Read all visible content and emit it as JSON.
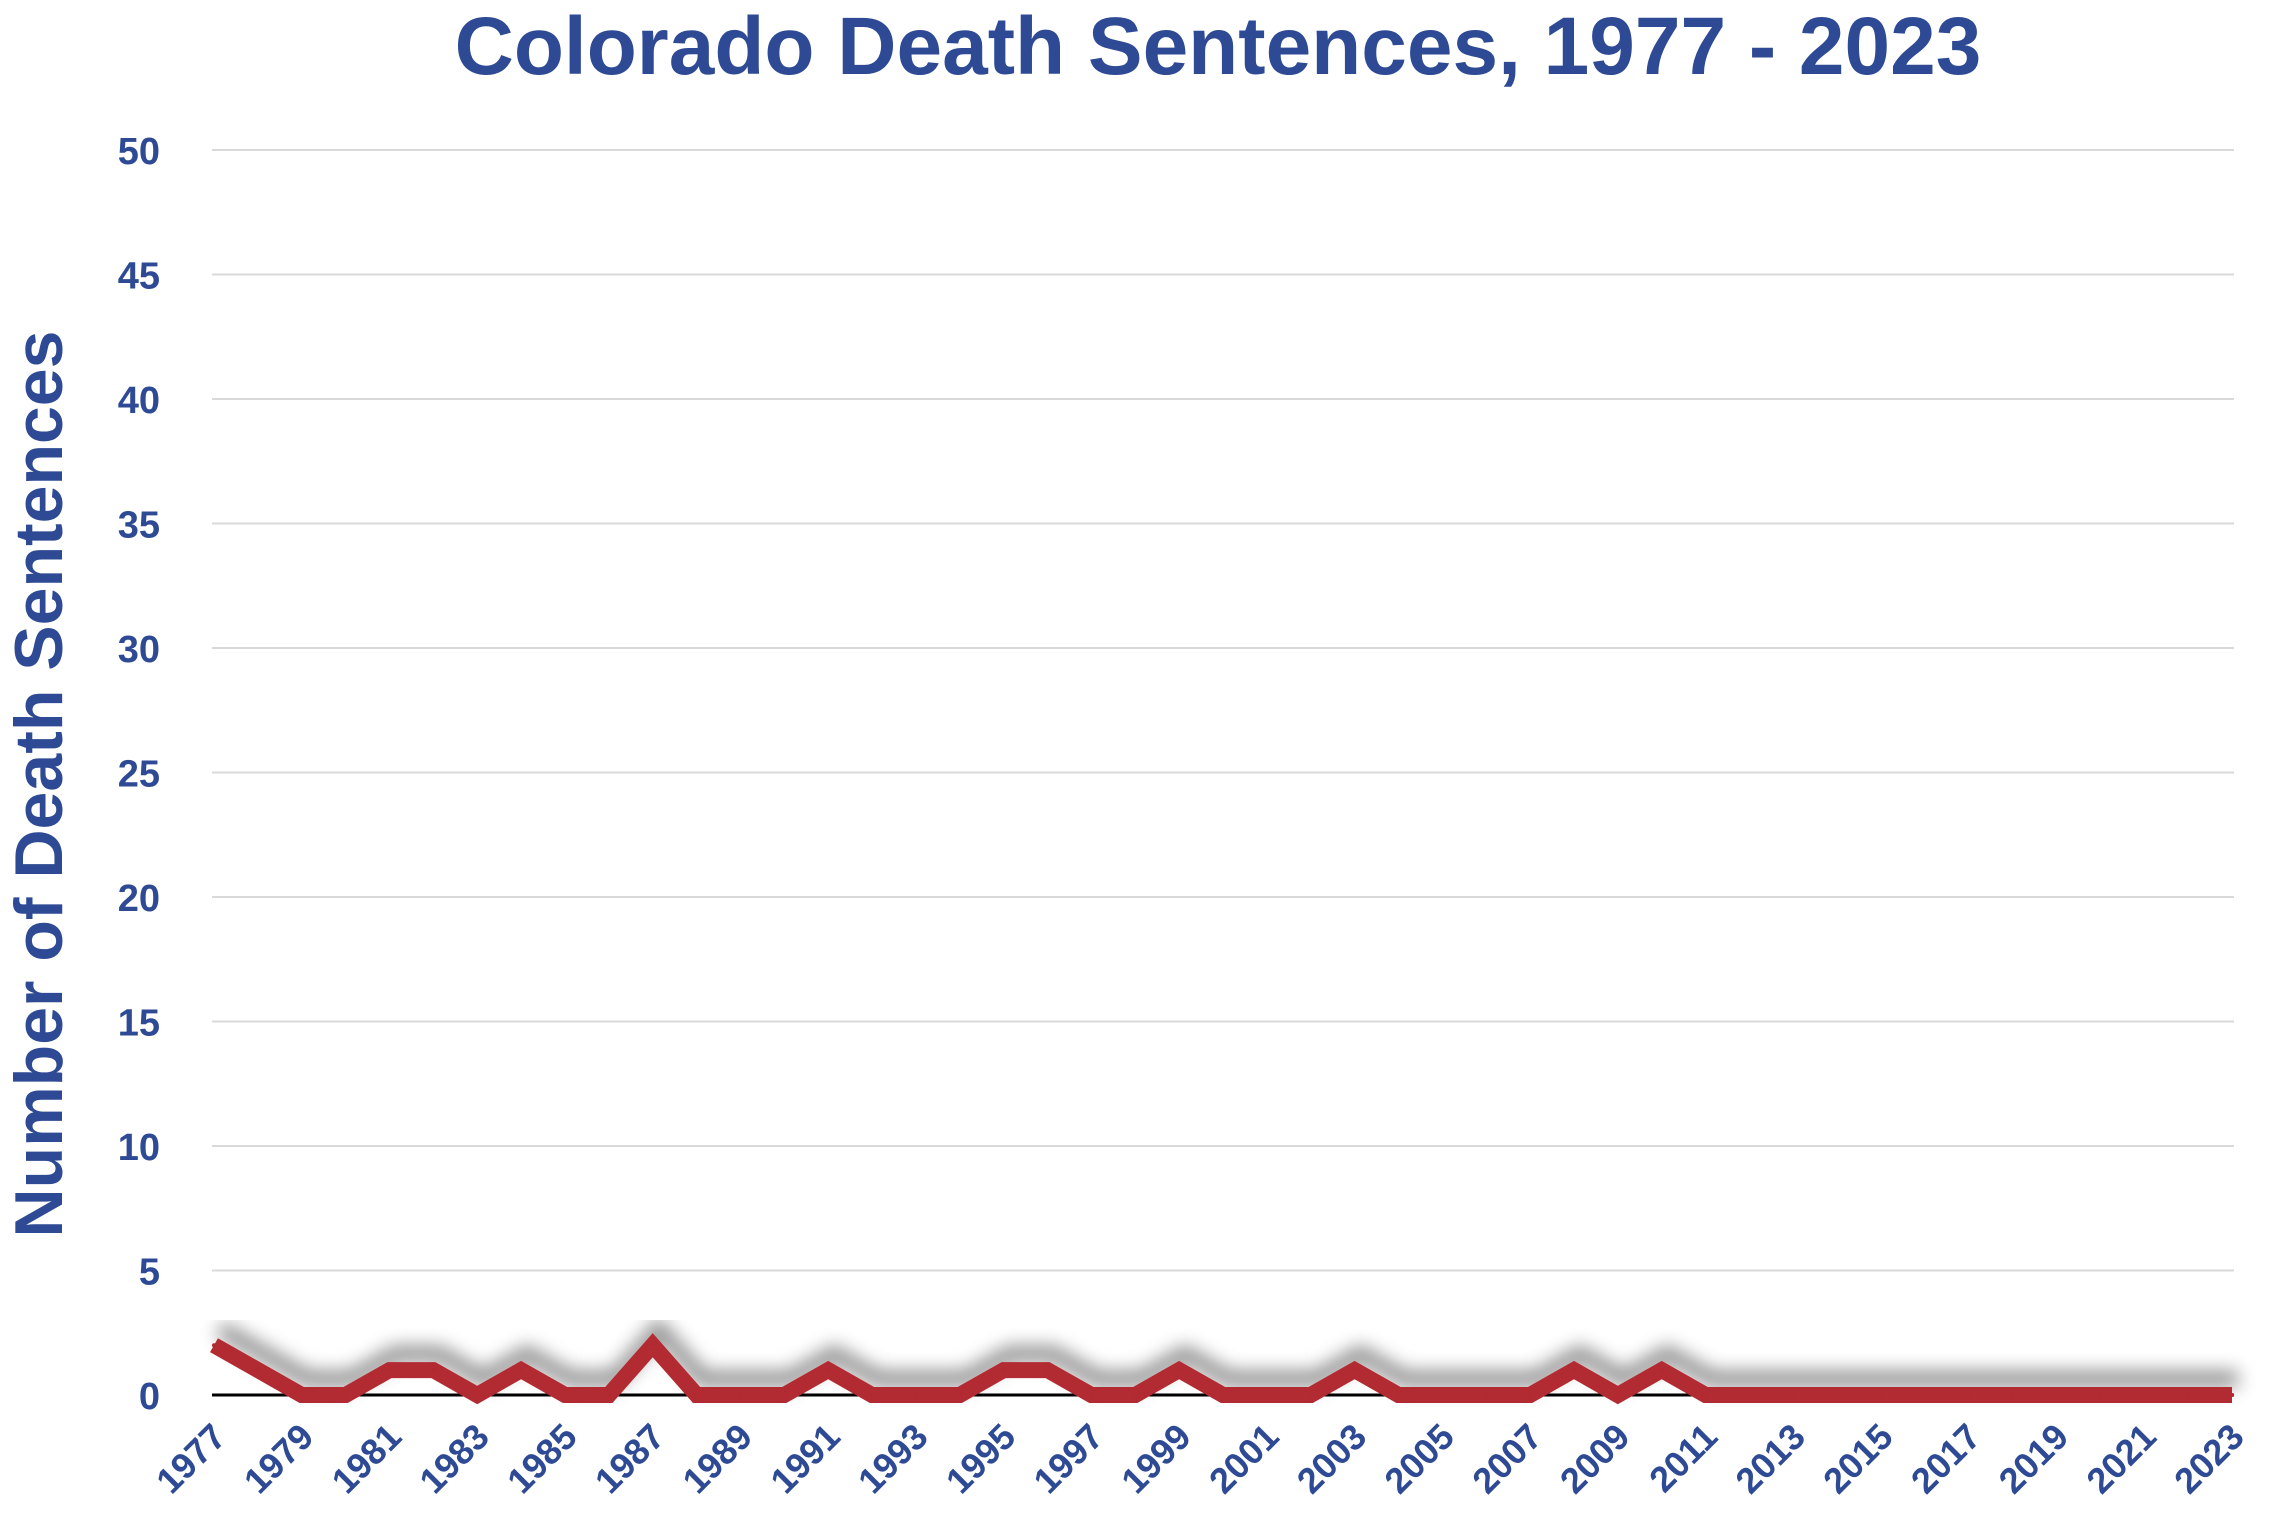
{
  "chart_data": {
    "type": "line",
    "title": "Colorado Death Sentences, 1977 - 2023",
    "ylabel": "Number of Death Sentences",
    "xlabel": "",
    "ylim": [
      0,
      50
    ],
    "y_ticks": [
      "0",
      "5",
      "10",
      "15",
      "20",
      "25",
      "30",
      "35",
      "40",
      "45",
      "50"
    ],
    "x_tick_labels": [
      "1977",
      "1979",
      "1981",
      "1983",
      "1985",
      "1987",
      "1989",
      "1991",
      "1993",
      "1995",
      "1997",
      "1999",
      "2001",
      "2003",
      "2005",
      "2007",
      "2009",
      "2011",
      "2013",
      "2015",
      "2017",
      "2019",
      "2021",
      "2023"
    ],
    "grid": true,
    "legend": "none",
    "x": [
      1977,
      1978,
      1979,
      1980,
      1981,
      1982,
      1983,
      1984,
      1985,
      1986,
      1987,
      1988,
      1989,
      1990,
      1991,
      1992,
      1993,
      1994,
      1995,
      1996,
      1997,
      1998,
      1999,
      2000,
      2001,
      2002,
      2003,
      2004,
      2005,
      2006,
      2007,
      2008,
      2009,
      2010,
      2011,
      2012,
      2013,
      2014,
      2015,
      2016,
      2017,
      2018,
      2019,
      2020,
      2021,
      2022,
      2023
    ],
    "series": [
      {
        "values": [
          2,
          1,
          0,
          0,
          1,
          1,
          0,
          1,
          0,
          0,
          2,
          0,
          0,
          0,
          1,
          0,
          0,
          0,
          1,
          1,
          0,
          0,
          1,
          0,
          0,
          0,
          1,
          0,
          0,
          0,
          0,
          1,
          0,
          1,
          0,
          0,
          0,
          0,
          0,
          0,
          0,
          0,
          0,
          0,
          0,
          0,
          0
        ]
      }
    ],
    "colors": {
      "text": "#2E4A94",
      "line": "#B22A30",
      "grid": "#d9d9d9",
      "axis": "#000000"
    }
  }
}
